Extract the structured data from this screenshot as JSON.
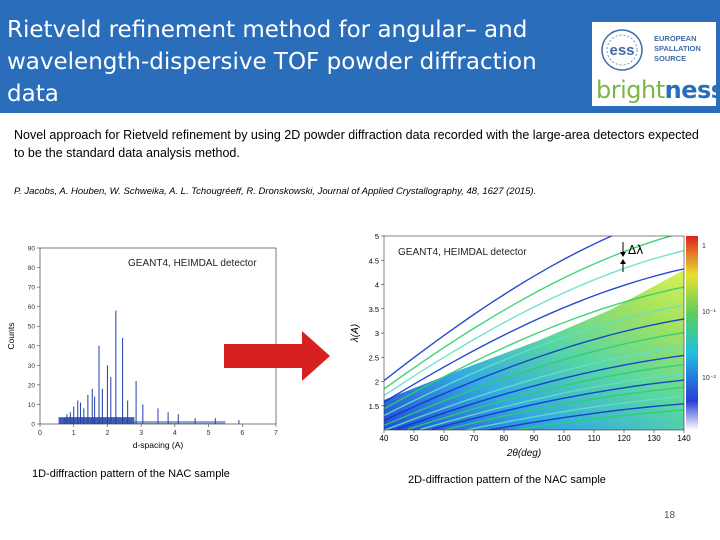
{
  "header": {
    "title": "Rietveld refinement method for angular– and wavelength-dispersive TOF powder diffraction data",
    "logo": {
      "ess_mark": "ess",
      "lines": [
        "EUROPEAN",
        "SPALLATION",
        "SOURCE"
      ],
      "brand_prefix": "bright",
      "brand_suffix": "ness"
    }
  },
  "intro": "Novel approach for Rietveld refinement by using 2D powder diffraction data recorded with the large-area detectors expected to be the standard data analysis method.",
  "reference": "P. Jacobs, A. Houben, W. Schweika, A. L. Tchougréeff, R. Dronskowski, Journal of Applied Crystallography, 48, 1627 (2015).",
  "chart_data": [
    {
      "type": "line",
      "xlabel": "d-spacing (A)",
      "ylabel": "Counts",
      "xlim": [
        0,
        7
      ],
      "ylim": [
        0,
        90
      ],
      "x_ticks": [
        0,
        1,
        2,
        3,
        4,
        5,
        6,
        7
      ],
      "y_ticks": [
        0,
        10,
        20,
        30,
        40,
        50,
        60,
        70,
        80,
        90
      ],
      "annotation": "GEANT4, HEIMDAL detector",
      "peaks": {
        "x": [
          0.72,
          0.8,
          0.9,
          1.0,
          1.12,
          1.2,
          1.3,
          1.42,
          1.55,
          1.62,
          1.75,
          1.85,
          2.0,
          2.1,
          2.25,
          2.45,
          2.6,
          2.85,
          3.05,
          3.5,
          3.8,
          4.1,
          4.6,
          5.2,
          5.9
        ],
        "y": [
          3,
          5,
          6,
          9,
          12,
          11,
          8,
          15,
          18,
          14,
          40,
          18,
          30,
          24,
          58,
          44,
          12,
          22,
          10,
          8,
          6,
          5,
          3,
          3,
          2
        ]
      }
    },
    {
      "type": "heatmap",
      "xlabel": "2θ(deg)",
      "ylabel": "λ(A)",
      "xlim": [
        40,
        140
      ],
      "ylim": [
        1,
        5
      ],
      "x_ticks": [
        40,
        50,
        60,
        70,
        80,
        90,
        100,
        110,
        120,
        130,
        140
      ],
      "y_ticks": [
        1.5,
        2,
        2.5,
        3,
        3.5,
        4,
        4.5,
        5
      ],
      "colorbar_ticks": [
        "1",
        "10⁻¹",
        "10⁻²"
      ],
      "annotation": "GEANT4, HEIMDAL detector",
      "delta_label": "Δλ"
    }
  ],
  "captions": {
    "plot1": "1D-diffraction pattern of the NAC sample",
    "plot2": "2D-diffraction pattern of the NAC sample"
  },
  "page_number": "18",
  "colors": {
    "header": "#2a6ebb",
    "brand_green": "#7ab648",
    "arrow": "#d62020"
  }
}
